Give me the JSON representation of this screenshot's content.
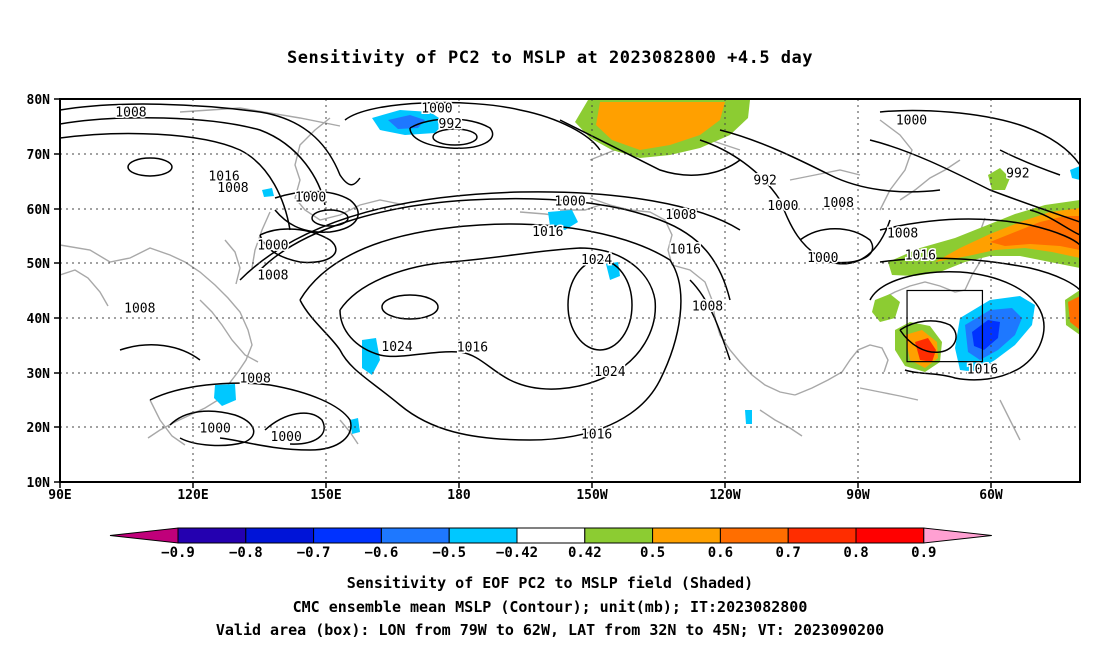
{
  "title": "Sensitivity of PC2 to MSLP at 2023082800 +4.5 day",
  "map": {
    "lon_labels": [
      "90E",
      "120E",
      "150E",
      "180",
      "150W",
      "120W",
      "90W",
      "60W"
    ],
    "lat_labels": [
      "80N",
      "70N",
      "60N",
      "50N",
      "40N",
      "30N",
      "20N",
      "10N"
    ],
    "contour_labels": [
      {
        "text": "1008",
        "lon": 106,
        "lat": 77.5
      },
      {
        "text": "1000",
        "lon": 175,
        "lat": 78.3
      },
      {
        "text": "992",
        "lon": 178,
        "lat": 75.4
      },
      {
        "text": "992",
        "lon": 249,
        "lat": 65.1
      },
      {
        "text": "1016",
        "lon": 127,
        "lat": 65.8
      },
      {
        "text": "1008",
        "lon": 129,
        "lat": 63.7
      },
      {
        "text": "1000",
        "lon": 146.5,
        "lat": 62.0
      },
      {
        "text": "1000",
        "lon": 205,
        "lat": 61.3
      },
      {
        "text": "1008",
        "lon": 230,
        "lat": 58.8
      },
      {
        "text": "1000",
        "lon": 253,
        "lat": 60.4
      },
      {
        "text": "1008",
        "lon": 265.5,
        "lat": 61.0
      },
      {
        "text": "1000",
        "lon": 282,
        "lat": 76.1
      },
      {
        "text": "992",
        "lon": 306,
        "lat": 66.4
      },
      {
        "text": "1016",
        "lon": 200,
        "lat": 55.7
      },
      {
        "text": "1024",
        "lon": 211,
        "lat": 50.6
      },
      {
        "text": "1016",
        "lon": 231,
        "lat": 52.5
      },
      {
        "text": "1000",
        "lon": 138,
        "lat": 53.2
      },
      {
        "text": "1008",
        "lon": 138,
        "lat": 47.7
      },
      {
        "text": "1008",
        "lon": 108,
        "lat": 41.7
      },
      {
        "text": "1024",
        "lon": 166,
        "lat": 34.7
      },
      {
        "text": "1016",
        "lon": 183,
        "lat": 34.6
      },
      {
        "text": "1024",
        "lon": 214,
        "lat": 30.1
      },
      {
        "text": "1008",
        "lon": 236,
        "lat": 42.1
      },
      {
        "text": "1008",
        "lon": 280,
        "lat": 55.4
      },
      {
        "text": "1000",
        "lon": 262,
        "lat": 50.9
      },
      {
        "text": "1016",
        "lon": 284,
        "lat": 51.4
      },
      {
        "text": "1016",
        "lon": 298,
        "lat": 30.6
      },
      {
        "text": "1008",
        "lon": 134,
        "lat": 28.9
      },
      {
        "text": "1000",
        "lon": 125,
        "lat": 19.8
      },
      {
        "text": "1000",
        "lon": 141,
        "lat": 18.2
      },
      {
        "text": "1016",
        "lon": 211,
        "lat": 18.7
      }
    ],
    "valid_box": {
      "lon_min": 281,
      "lon_max": 298,
      "lat_min": 32,
      "lat_max": 45
    },
    "extent": {
      "lon_min": 90,
      "lon_max": 320,
      "lat_min": 10,
      "lat_max": 80
    }
  },
  "colorbar": {
    "labels": [
      "−0.9",
      "−0.8",
      "−0.7",
      "−0.6",
      "−0.5",
      "−0.42",
      "0.42",
      "0.5",
      "0.6",
      "0.7",
      "0.8",
      "0.9"
    ],
    "colors": [
      "#2400b0",
      "#0014d8",
      "#0032ff",
      "#1e78ff",
      "#00c8ff",
      "#ffffff",
      "#8ccc32",
      "#ffa000",
      "#ff6e00",
      "#ff2d00",
      "#ff0000"
    ],
    "neg_end_color": "#c0007a",
    "pos_end_color": "#ffa0d2"
  },
  "captions": {
    "line1": "Sensitivity of EOF PC2 to MSLP field (Shaded)",
    "line2": "CMC ensemble mean MSLP (Contour); unit(mb); IT:2023082800",
    "line3": "Valid area (box): LON from 79W to 62W, LAT from 32N to 45N; VT: 2023090200"
  }
}
